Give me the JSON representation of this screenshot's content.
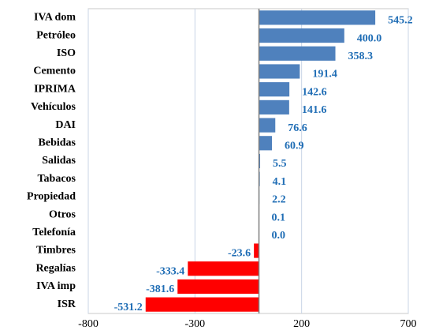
{
  "chart_data": {
    "type": "hbar",
    "categories": [
      "IVA dom",
      "Petróleo",
      "ISO",
      "Cemento",
      "IPRIMA",
      "Vehículos",
      "DAI",
      "Bebidas",
      "Salidas",
      "Tabacos",
      "Propiedad",
      "Otros",
      "Telefonía",
      "Timbres",
      "Regalías",
      "IVA imp",
      "ISR"
    ],
    "values": [
      545.2,
      400,
      358.3,
      191.4,
      142.6,
      141.6,
      76.6,
      60.9,
      5.5,
      4.1,
      2.2,
      0.1,
      0,
      -23.6,
      -333.4,
      -381.6,
      -531.2
    ],
    "value_labels": [
      "545.2",
      "400.0",
      "358.3",
      "191.4",
      "142.6",
      "141.6",
      "76.6",
      "60.9",
      "5.5",
      "4.1",
      "2.2",
      "0.1",
      "0.0",
      "-23.6",
      "-333.4",
      "-381.6",
      "-531.2"
    ],
    "color": "#4f81bd",
    "negative_color": "#ff0000",
    "label_color": "#1f6db5",
    "xlim": [
      -800,
      700
    ],
    "xticks": [
      -800,
      -300,
      200,
      700
    ],
    "grid": true
  }
}
